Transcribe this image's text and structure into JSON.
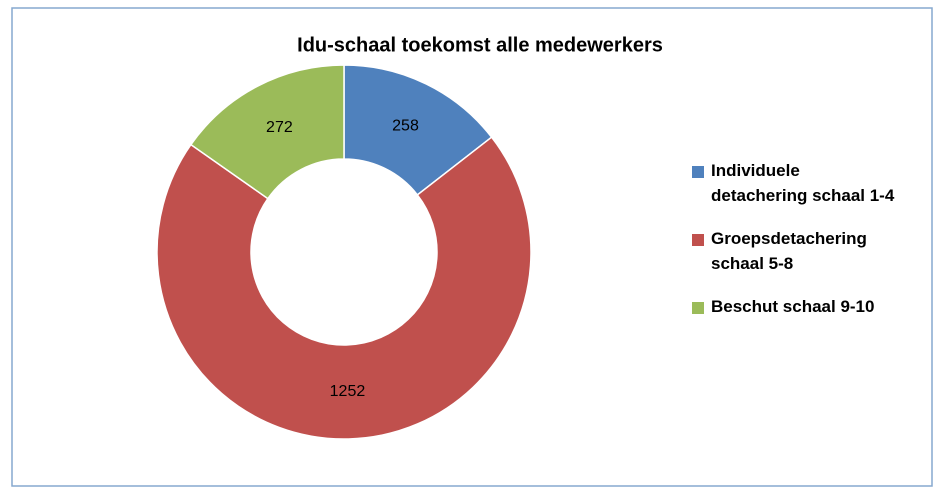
{
  "chart_data": {
    "type": "pie",
    "title": "Idu-schaal toekomst alle medewerkers",
    "categories": [
      "Individuele detachering schaal 1-4",
      "Groepsdetachering schaal 5-8",
      "Beschut schaal 9-10"
    ],
    "values": [
      258,
      1252,
      272
    ],
    "colors": [
      "#4f81bd",
      "#c0504d",
      "#9bbb59"
    ],
    "donut": true,
    "legend": "right"
  }
}
